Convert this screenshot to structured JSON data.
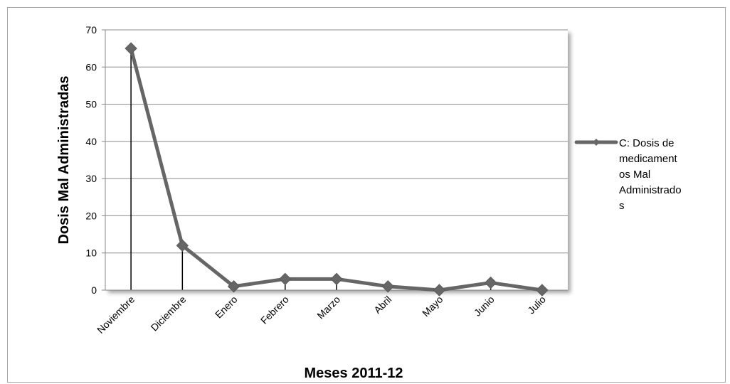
{
  "chart_data": {
    "type": "line",
    "title": "",
    "xlabel": "Meses 2011-12",
    "ylabel": "Dosis Mal Administradas",
    "categories": [
      "Noviembre",
      "Diciembre",
      "Enero",
      "Febrero",
      "Marzo",
      "Abril",
      "Mayo",
      "Junio",
      "Julio"
    ],
    "series": [
      {
        "name": "C: Dosis de medicamentos Mal Administrados",
        "legend_lines": [
          "C: Dosis de",
          "medicament",
          "os Mal",
          "Administrado",
          "s"
        ],
        "values": [
          65,
          12,
          1,
          3,
          3,
          1,
          0,
          2,
          0
        ],
        "color": "#666666",
        "marker": "diamond"
      }
    ],
    "ylim": [
      0,
      70
    ],
    "yticks": [
      0,
      10,
      20,
      30,
      40,
      50,
      60,
      70
    ],
    "grid": true,
    "drop_lines": true,
    "legend_position": "right"
  }
}
